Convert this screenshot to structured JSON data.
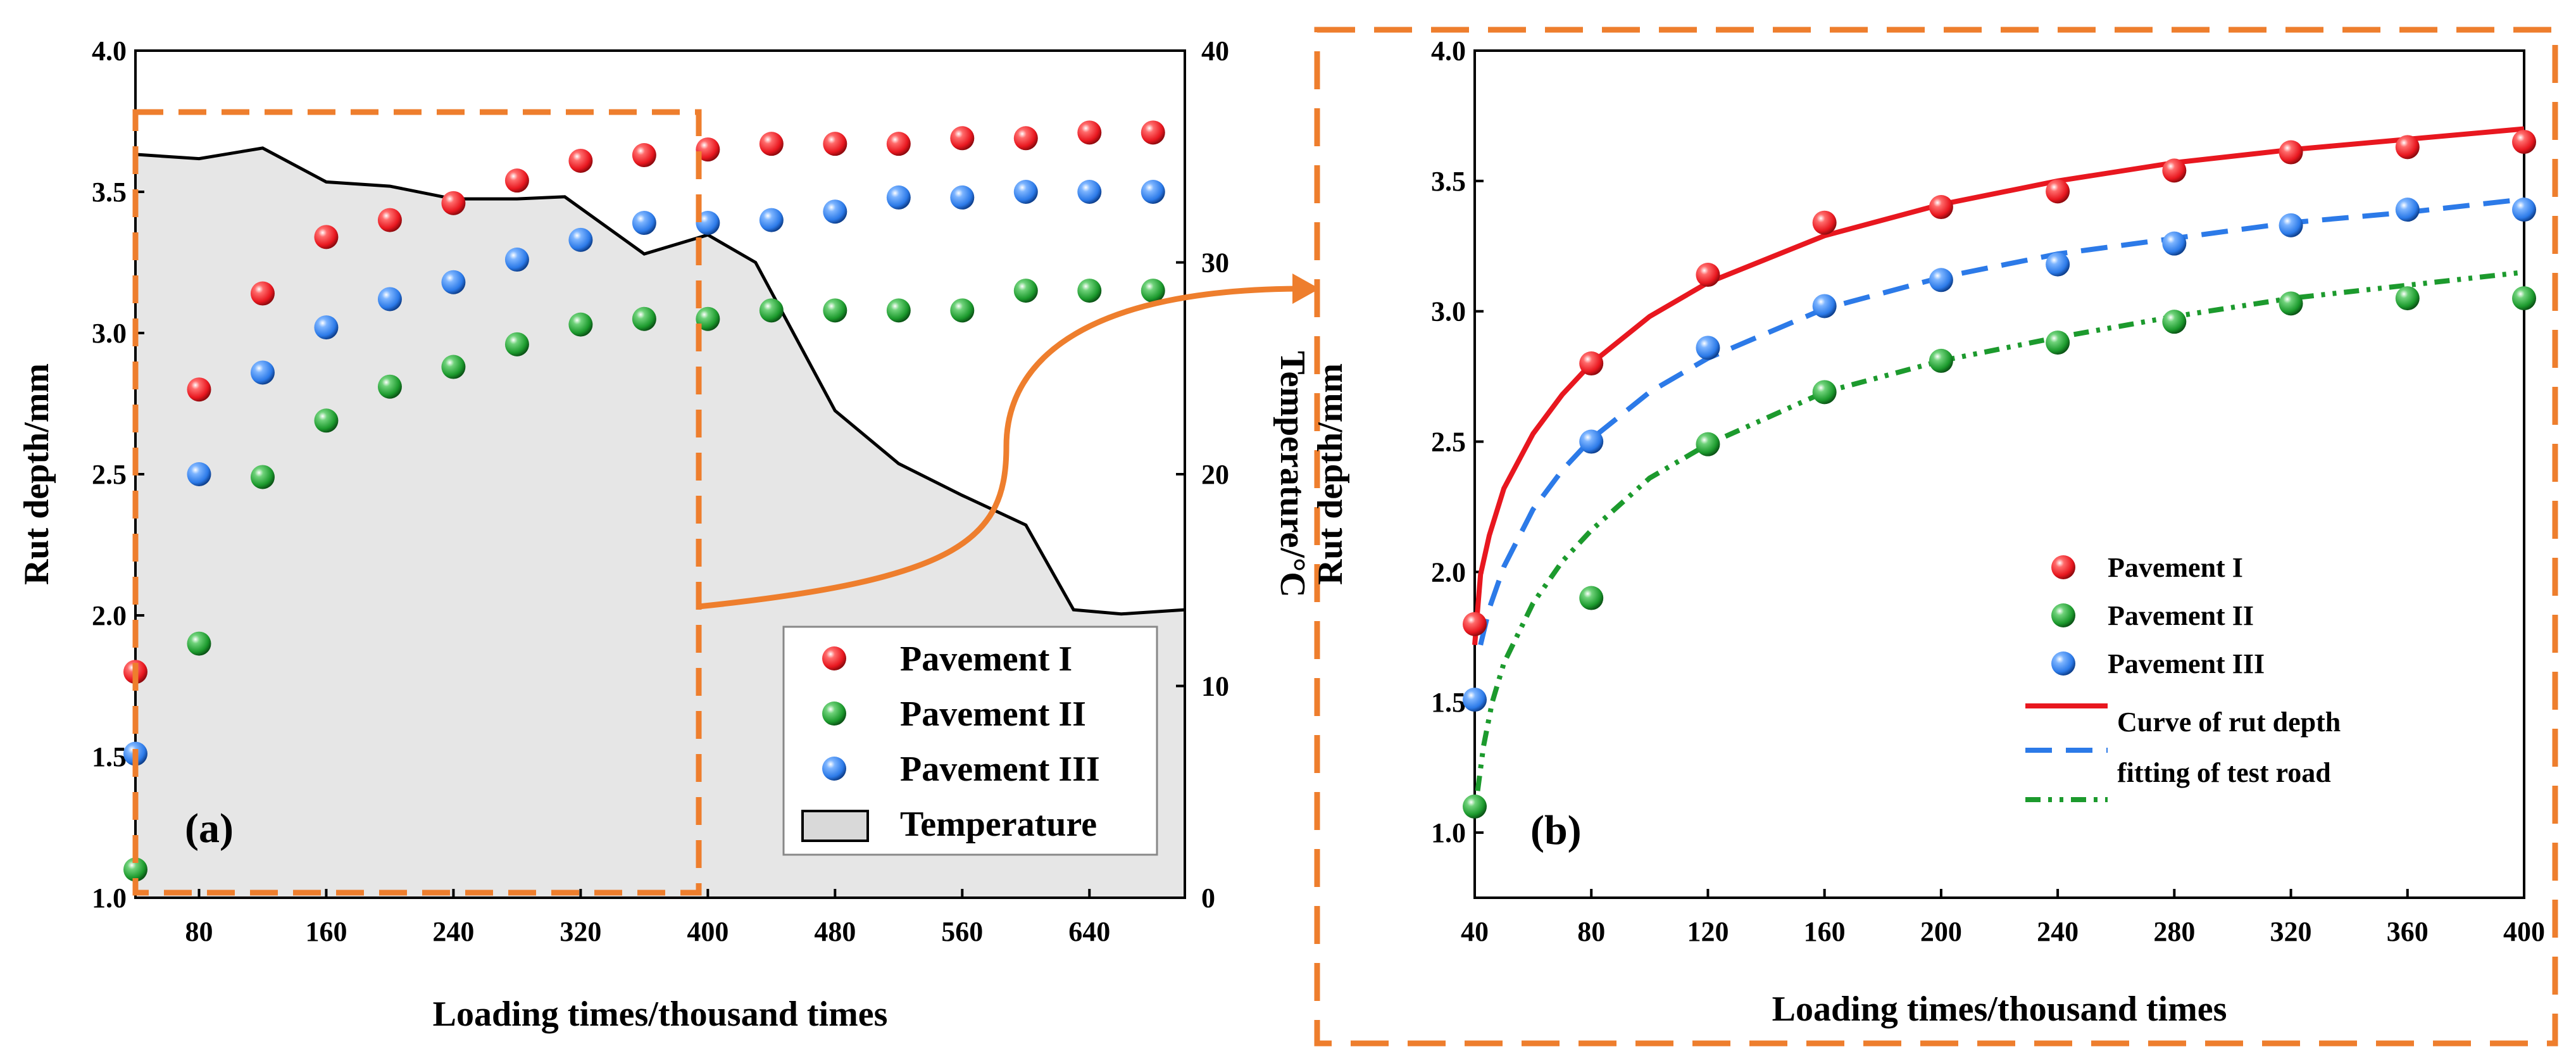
{
  "chart_data": [
    {
      "panel": "(a)",
      "type": "scatter",
      "x_title": "Loading times/thousand times",
      "y_title": "Rut depth/mm",
      "y2_title": "Temperature/°C",
      "xlim": [
        40,
        700
      ],
      "ylim": [
        1.0,
        4.0
      ],
      "y2lim": [
        0,
        40
      ],
      "x_ticks": [
        80,
        160,
        240,
        320,
        400,
        480,
        560,
        640
      ],
      "y_ticks": [
        1.0,
        1.5,
        2.0,
        2.5,
        3.0,
        3.5,
        4.0
      ],
      "y2_ticks": [
        0,
        10,
        20,
        30,
        40
      ],
      "x": [
        40,
        80,
        120,
        160,
        200,
        240,
        280,
        320,
        360,
        400,
        440,
        480,
        520,
        560,
        600,
        640,
        680
      ],
      "series": [
        {
          "name": "Pavement I",
          "color": "#e8171f",
          "values": [
            1.8,
            2.8,
            3.14,
            3.34,
            3.4,
            3.46,
            3.54,
            3.61,
            3.63,
            3.65,
            3.67,
            3.67,
            3.67,
            3.69,
            3.69,
            3.71,
            3.71
          ]
        },
        {
          "name": "Pavement II",
          "color": "#1c9a2d",
          "values": [
            1.1,
            1.9,
            2.49,
            2.69,
            2.81,
            2.88,
            2.96,
            3.03,
            3.05,
            3.05,
            3.08,
            3.08,
            3.08,
            3.08,
            3.15,
            3.15,
            3.15
          ]
        },
        {
          "name": "Pavement III",
          "color": "#2c7ae8",
          "values": [
            1.51,
            2.5,
            2.86,
            3.02,
            3.12,
            3.18,
            3.26,
            3.33,
            3.39,
            3.39,
            3.4,
            3.43,
            3.48,
            3.48,
            3.5,
            3.5,
            3.5
          ]
        }
      ],
      "temperature": {
        "name": "Temperature",
        "color": "#e6e6e6",
        "x": [
          40,
          80,
          120,
          160,
          200,
          240,
          280,
          310,
          360,
          400,
          430,
          480,
          520,
          560,
          600,
          630,
          660,
          700
        ],
        "values": [
          35.1,
          34.9,
          35.4,
          33.8,
          33.6,
          33.0,
          33.0,
          33.1,
          30.4,
          31.3,
          30.0,
          23.0,
          20.5,
          19.0,
          17.6,
          13.6,
          13.4,
          13.6
        ]
      },
      "legend": [
        "Pavement I",
        "Pavement II",
        "Pavement III",
        "Temperature"
      ],
      "legend_loc": "lower-right",
      "highlight_box": "40-390 region, dashed orange"
    },
    {
      "panel": "(b)",
      "type": "scatter",
      "x_title": "Loading times/thousand times",
      "y_title": "Rut depth/mm",
      "xlim": [
        40,
        400
      ],
      "ylim": [
        0.75,
        4.0
      ],
      "x_ticks": [
        40,
        80,
        120,
        160,
        200,
        240,
        280,
        320,
        360,
        400
      ],
      "y_ticks": [
        1.0,
        1.5,
        2.0,
        2.5,
        3.0,
        3.5,
        4.0
      ],
      "x": [
        40,
        80,
        120,
        160,
        200,
        240,
        280,
        320,
        360,
        400
      ],
      "series": [
        {
          "name": "Pavement I",
          "color": "#e8171f",
          "values": [
            1.8,
            2.8,
            3.14,
            3.34,
            3.4,
            3.46,
            3.54,
            3.61,
            3.63,
            3.65
          ]
        },
        {
          "name": "Pavement II",
          "color": "#1c9a2d",
          "values": [
            1.1,
            1.9,
            2.49,
            2.69,
            2.81,
            2.88,
            2.96,
            3.03,
            3.05,
            3.05
          ]
        },
        {
          "name": "Pavement III",
          "color": "#2c7ae8",
          "values": [
            1.51,
            2.5,
            2.86,
            3.02,
            3.12,
            3.18,
            3.26,
            3.33,
            3.39,
            3.39
          ]
        }
      ],
      "fits": [
        {
          "series": "Pavement I",
          "style": "solid",
          "color": "#e8171f",
          "x": [
            40,
            42,
            45,
            50,
            60,
            70,
            80,
            100,
            120,
            160,
            200,
            240,
            280,
            320,
            360,
            400
          ],
          "y": [
            1.72,
            1.99,
            2.14,
            2.32,
            2.53,
            2.68,
            2.8,
            2.98,
            3.11,
            3.29,
            3.41,
            3.5,
            3.57,
            3.62,
            3.66,
            3.7
          ]
        },
        {
          "series": "Pavement III",
          "style": "dashed",
          "color": "#2c7ae8",
          "x": [
            42,
            45,
            50,
            60,
            70,
            80,
            100,
            120,
            160,
            200,
            240,
            280,
            320,
            360,
            400
          ],
          "y": [
            1.72,
            1.86,
            2.02,
            2.24,
            2.39,
            2.51,
            2.69,
            2.82,
            3.01,
            3.13,
            3.22,
            3.28,
            3.34,
            3.38,
            3.43
          ]
        },
        {
          "series": "Pavement II",
          "style": "dash-dot-dot",
          "color": "#1c9a2d",
          "x": [
            41,
            43,
            46,
            50,
            60,
            70,
            80,
            100,
            120,
            160,
            200,
            240,
            280,
            320,
            360,
            400
          ],
          "y": [
            1.16,
            1.33,
            1.5,
            1.65,
            1.88,
            2.04,
            2.16,
            2.36,
            2.49,
            2.69,
            2.81,
            2.9,
            2.98,
            3.05,
            3.1,
            3.15
          ]
        }
      ],
      "legend": [
        "Pavement I",
        "Pavement II",
        "Pavement III",
        "Curve of rut depth",
        "fitting of test road"
      ],
      "legend_loc": "lower-right"
    }
  ],
  "labels": {
    "panel_a": "(a)",
    "panel_b": "(b)"
  }
}
